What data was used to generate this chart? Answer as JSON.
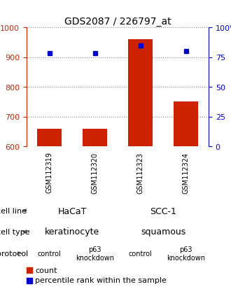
{
  "title": "GDS2087 / 226797_at",
  "samples": [
    "GSM112319",
    "GSM112320",
    "GSM112323",
    "GSM112324"
  ],
  "bar_values": [
    660,
    660,
    960,
    750
  ],
  "bar_bottom": 600,
  "percentile_values": [
    78,
    78,
    85,
    80
  ],
  "ylim_left": [
    600,
    1000
  ],
  "ylim_right": [
    0,
    100
  ],
  "yticks_left": [
    600,
    700,
    800,
    900,
    1000
  ],
  "yticks_right": [
    0,
    25,
    50,
    75,
    100
  ],
  "bar_color": "#cc2200",
  "dot_color": "#0000cc",
  "cell_line_row": {
    "label": "cell line",
    "groups": [
      {
        "text": "HaCaT",
        "cols": [
          0,
          1
        ],
        "color": "#bbffbb"
      },
      {
        "text": "SCC-1",
        "cols": [
          2,
          3
        ],
        "color": "#44cc44"
      }
    ]
  },
  "cell_type_row": {
    "label": "cell type",
    "groups": [
      {
        "text": "keratinocyte",
        "cols": [
          0,
          1
        ],
        "color": "#aaaaff"
      },
      {
        "text": "squamous",
        "cols": [
          2,
          3
        ],
        "color": "#8866cc"
      }
    ]
  },
  "protocol_row": {
    "label": "protocol",
    "groups": [
      {
        "text": "control",
        "cols": [
          0
        ],
        "color": "#ffbbbb"
      },
      {
        "text": "p63\nknockdown",
        "cols": [
          1
        ],
        "color": "#dd8888"
      },
      {
        "text": "control",
        "cols": [
          2
        ],
        "color": "#ffbbbb"
      },
      {
        "text": "p63\nknockdown",
        "cols": [
          3
        ],
        "color": "#dd8888"
      }
    ]
  },
  "sample_box_color": "#cccccc",
  "legend_count_color": "#cc2200",
  "legend_dot_color": "#0000cc",
  "left_axis_color": "#cc2200",
  "right_axis_color": "#0000cc",
  "grid_color": "#888888",
  "background_color": "#ffffff"
}
